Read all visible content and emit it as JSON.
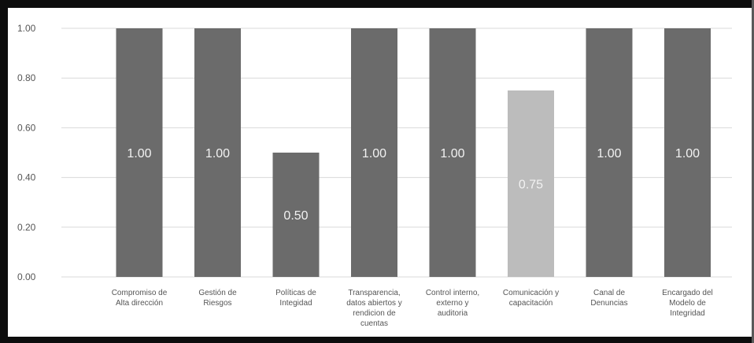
{
  "chart_data": {
    "type": "bar",
    "categories": [
      [
        "Compromiso de",
        "Alta dirección"
      ],
      [
        "Gestión de",
        "Riesgos"
      ],
      [
        "Políticas de",
        "Integidad"
      ],
      [
        "Transparencia,",
        "datos abiertos y",
        "rendicion de",
        "cuentas"
      ],
      [
        "Control interno,",
        "externo y",
        "auditoria"
      ],
      [
        "Comunicación y",
        "capacitación"
      ],
      [
        "Canal de",
        "Denuncias"
      ],
      [
        "Encargado del",
        "Modelo de",
        "Integridad"
      ]
    ],
    "values": [
      1.0,
      1.0,
      0.5,
      1.0,
      1.0,
      0.75,
      1.0,
      1.0
    ],
    "data_labels": [
      "1.00",
      "1.00",
      "0.50",
      "1.00",
      "1.00",
      "0.75",
      "1.00",
      "1.00"
    ],
    "yticks": [
      "0.00",
      "0.20",
      "0.40",
      "0.60",
      "0.80",
      "1.00"
    ],
    "ylim": [
      0,
      1
    ],
    "grid": true,
    "legend": "none",
    "colors": {
      "bar": "#6b6b6b",
      "highlight": "#bcbcbc",
      "grid": "#d9d9d9",
      "axis_text": "#555555",
      "label_text": "#f2f2f2"
    },
    "highlight_index": 5
  }
}
